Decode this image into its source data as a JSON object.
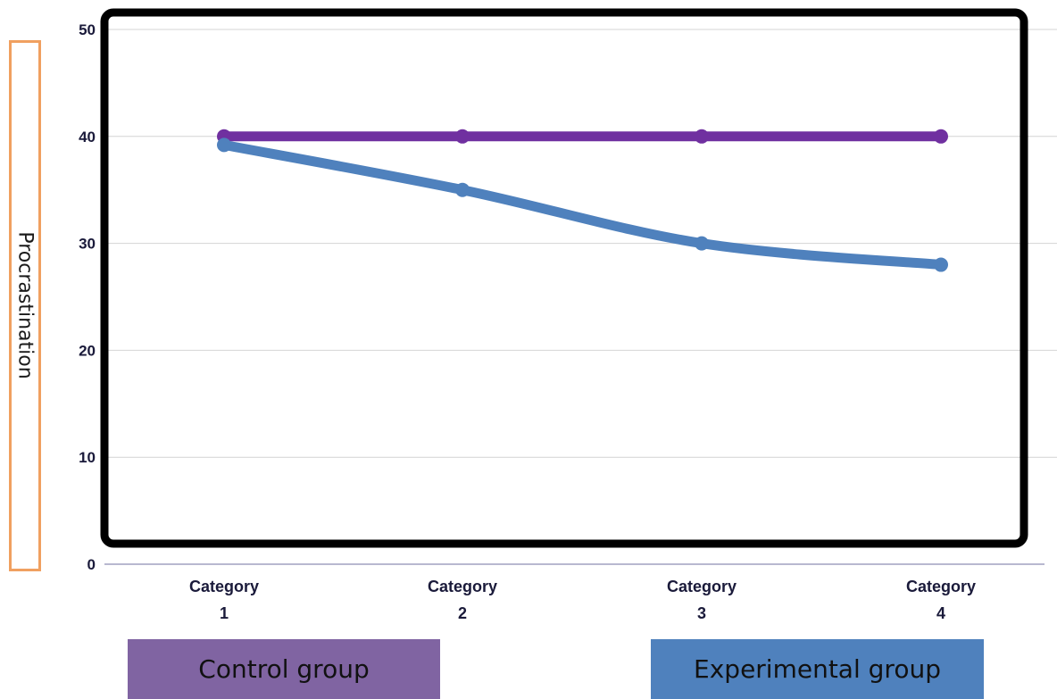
{
  "chart_data": {
    "type": "line",
    "categories": [
      [
        "Category",
        "1"
      ],
      [
        "Category",
        "2"
      ],
      [
        "Category",
        "3"
      ],
      [
        "Category",
        "4"
      ]
    ],
    "series": [
      {
        "name": "Control group",
        "color": "#7030a0",
        "values": [
          40,
          40,
          40,
          40
        ]
      },
      {
        "name": "Experimental group",
        "color": "#4f81bd",
        "values": [
          39.2,
          35,
          30,
          28
        ]
      }
    ],
    "ylabel": "Procrastination",
    "ylim": [
      0,
      50
    ],
    "yticks": [
      0,
      10,
      20,
      30,
      40,
      50
    ],
    "grid": true
  },
  "legend": {
    "control": {
      "label": "Control group",
      "color": "#8064a2"
    },
    "experimental": {
      "label": "Experimental group",
      "color": "#4f81bd"
    }
  }
}
